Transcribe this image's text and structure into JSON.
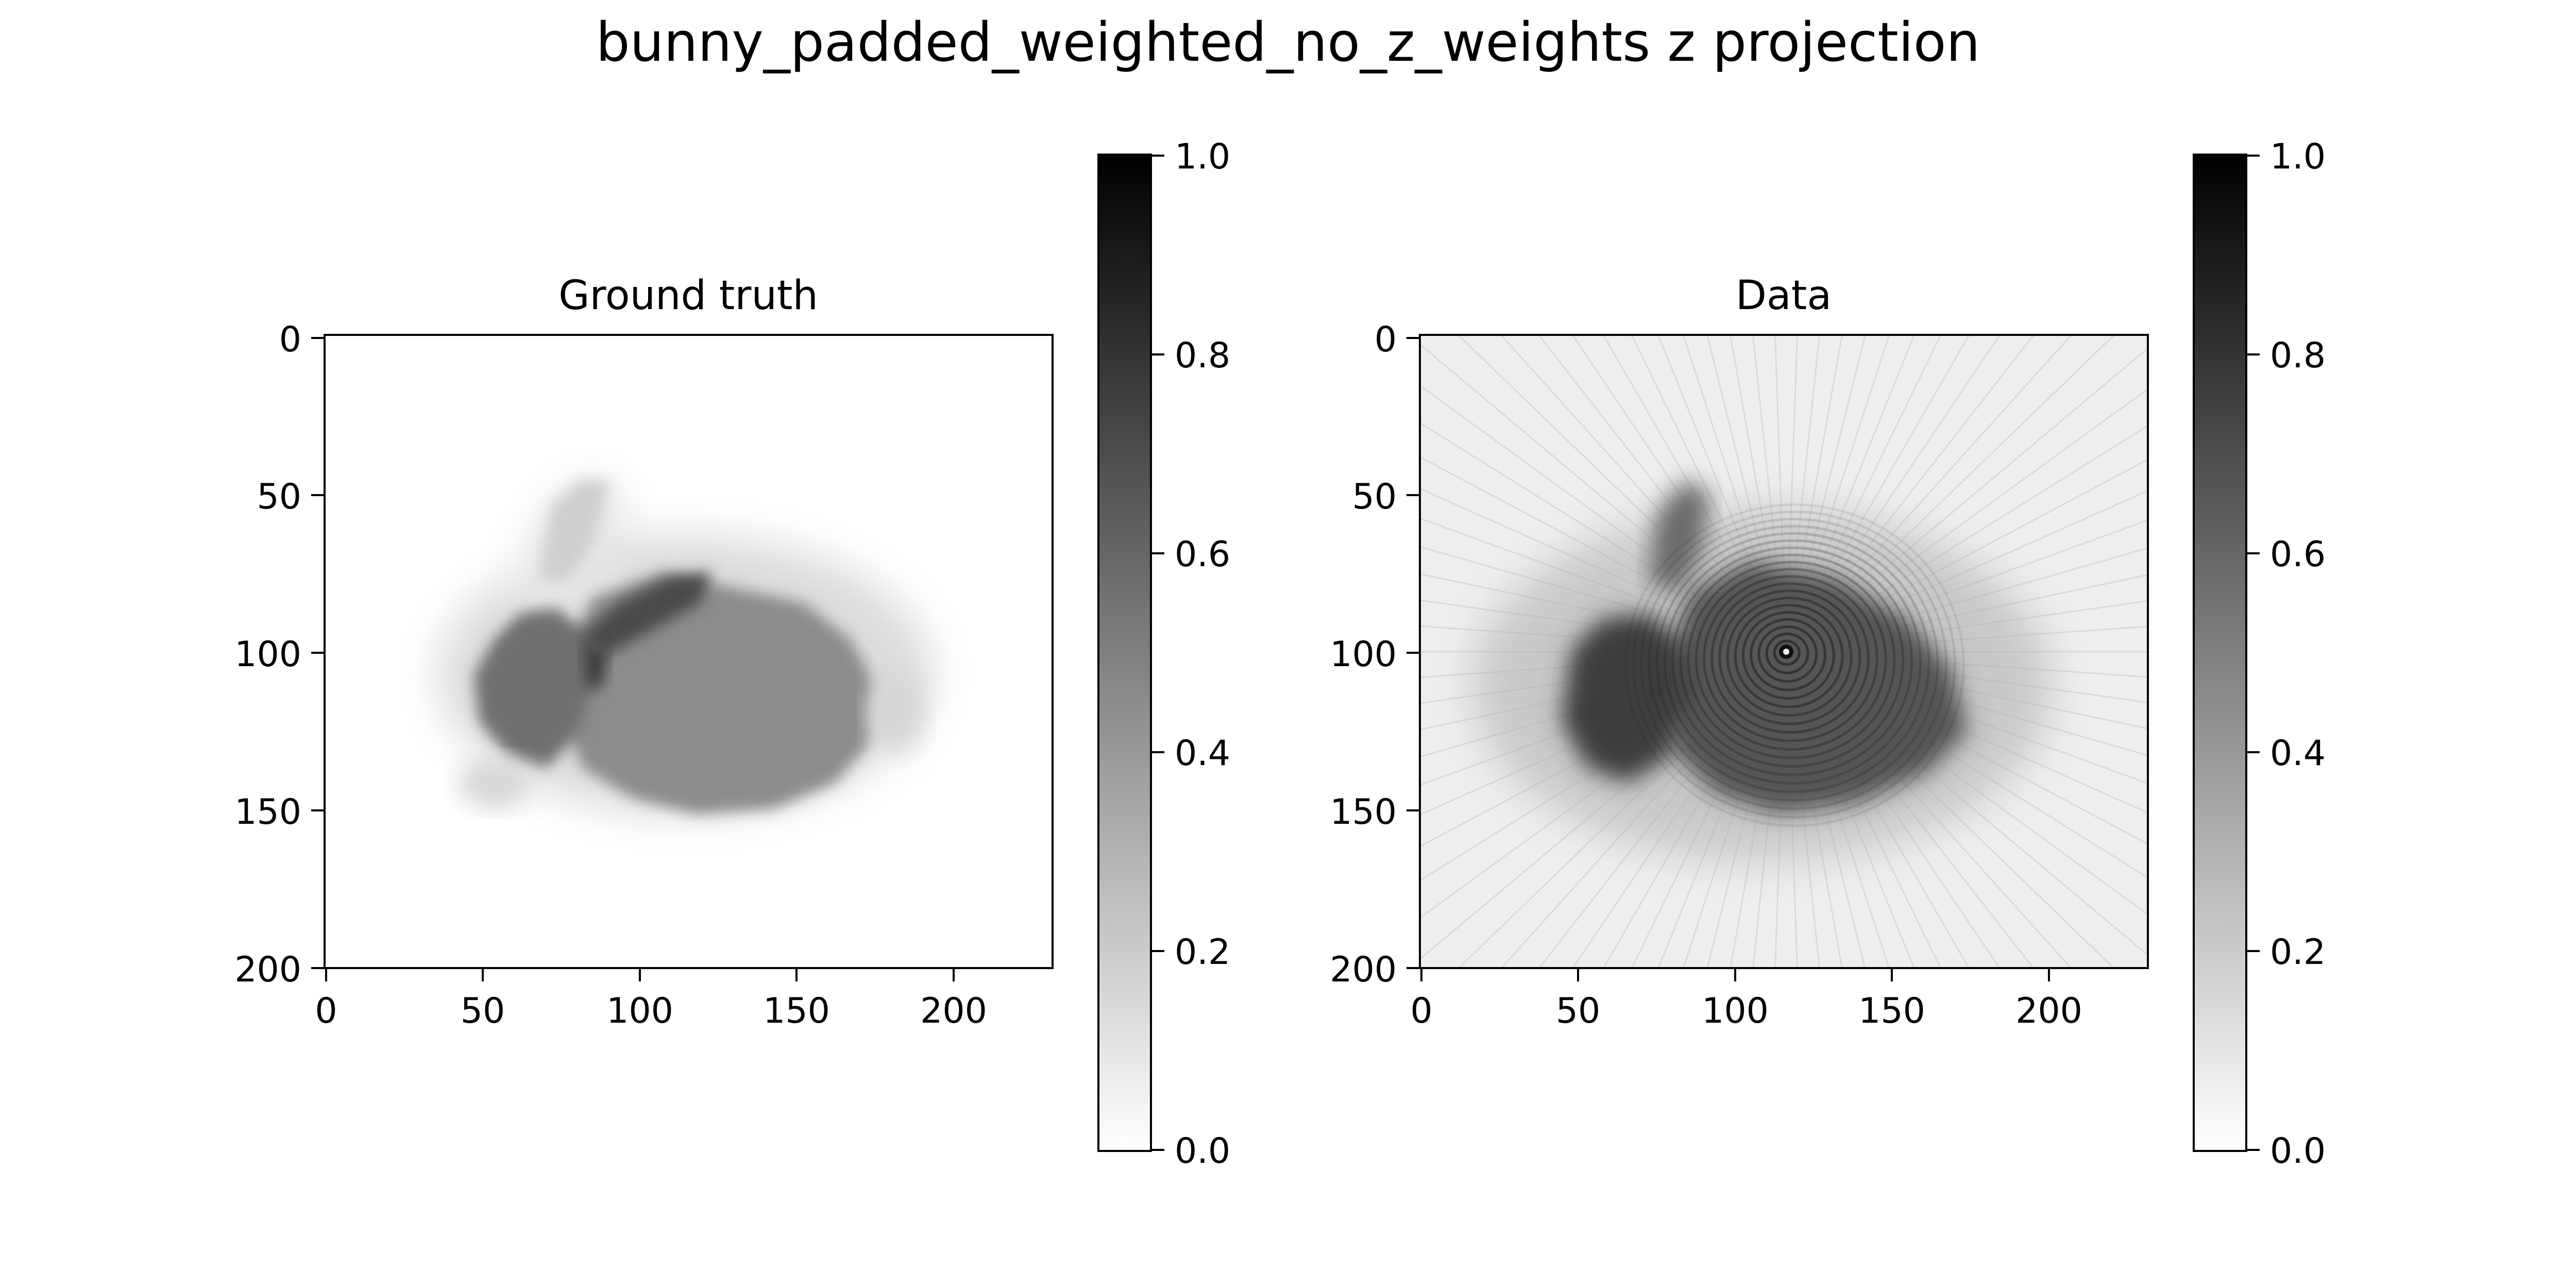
{
  "figure": {
    "title": "bunny_padded_weighted_no_z_weights z projection"
  },
  "chart_data": [
    {
      "type": "heatmap",
      "title": "Ground truth",
      "colormap": "gray_r",
      "x_ticks": [
        "0",
        "50",
        "100",
        "150",
        "200"
      ],
      "y_ticks": [
        "0",
        "50",
        "100",
        "150",
        "200"
      ],
      "xlim": [
        0,
        232
      ],
      "ylim": [
        201,
        0
      ],
      "colorbar": {
        "range": [
          0.0,
          1.0
        ],
        "ticks": [
          "0.0",
          "0.2",
          "0.4",
          "0.6",
          "0.8",
          "1.0"
        ]
      },
      "content": "bunny silhouette, mid-gray (~0.6-0.7) body with darker ear overlap and lighter hazy edges on white background",
      "colors": {
        "background": "#ffffff",
        "body": "#8a8a8a",
        "dark": "#3a3a3a"
      }
    },
    {
      "type": "heatmap",
      "title": "Data",
      "colormap": "gray_r",
      "x_ticks": [
        "0",
        "50",
        "100",
        "150",
        "200"
      ],
      "y_ticks": [
        "0",
        "50",
        "100",
        "150",
        "200"
      ],
      "xlim": [
        0,
        232
      ],
      "ylim": [
        201,
        0
      ],
      "colorbar": {
        "range": [
          0.0,
          1.0
        ],
        "ticks": [
          "0.0",
          "0.2",
          "0.4",
          "0.6",
          "0.8",
          "1.0"
        ]
      },
      "content": "noisy bunny reconstruction with concentric ring artifacts centered near (116,100) and faint radial streaks over light gray background",
      "colors": {
        "background": "#eeeeee",
        "body": "#555555",
        "dark": "#1a1a1a"
      }
    }
  ]
}
